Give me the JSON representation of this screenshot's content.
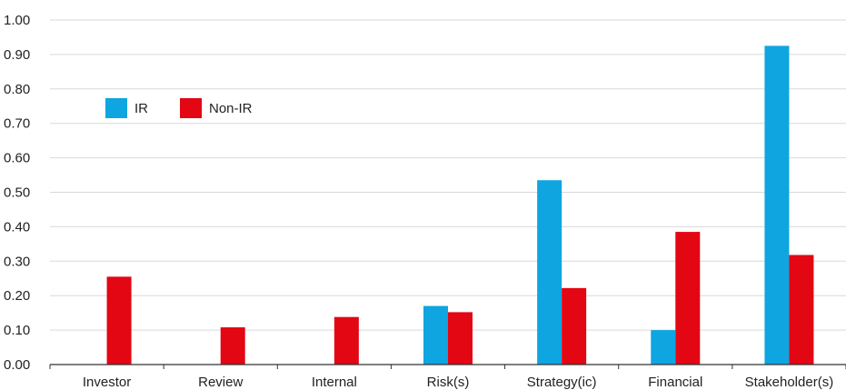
{
  "chart_data": {
    "type": "bar",
    "categories": [
      "Investor",
      "Review",
      "Internal",
      "Risk(s)",
      "Strategy(ic)",
      "Financial",
      "Stakeholder(s)"
    ],
    "series": [
      {
        "name": "IR",
        "color": "#0ea5e0",
        "values": [
          0.0,
          0.0,
          0.0,
          0.17,
          0.535,
          0.1,
          0.925
        ]
      },
      {
        "name": "Non-IR",
        "color": "#e30613",
        "values": [
          0.255,
          0.108,
          0.138,
          0.152,
          0.222,
          0.385,
          0.318
        ]
      }
    ],
    "yticks": [
      "0.00",
      "0.10",
      "0.20",
      "0.30",
      "0.40",
      "0.50",
      "0.60",
      "0.70",
      "0.80",
      "0.90",
      "1.00"
    ],
    "ylim": [
      0,
      1.0
    ],
    "grid": true,
    "legend_position": "top-left"
  }
}
